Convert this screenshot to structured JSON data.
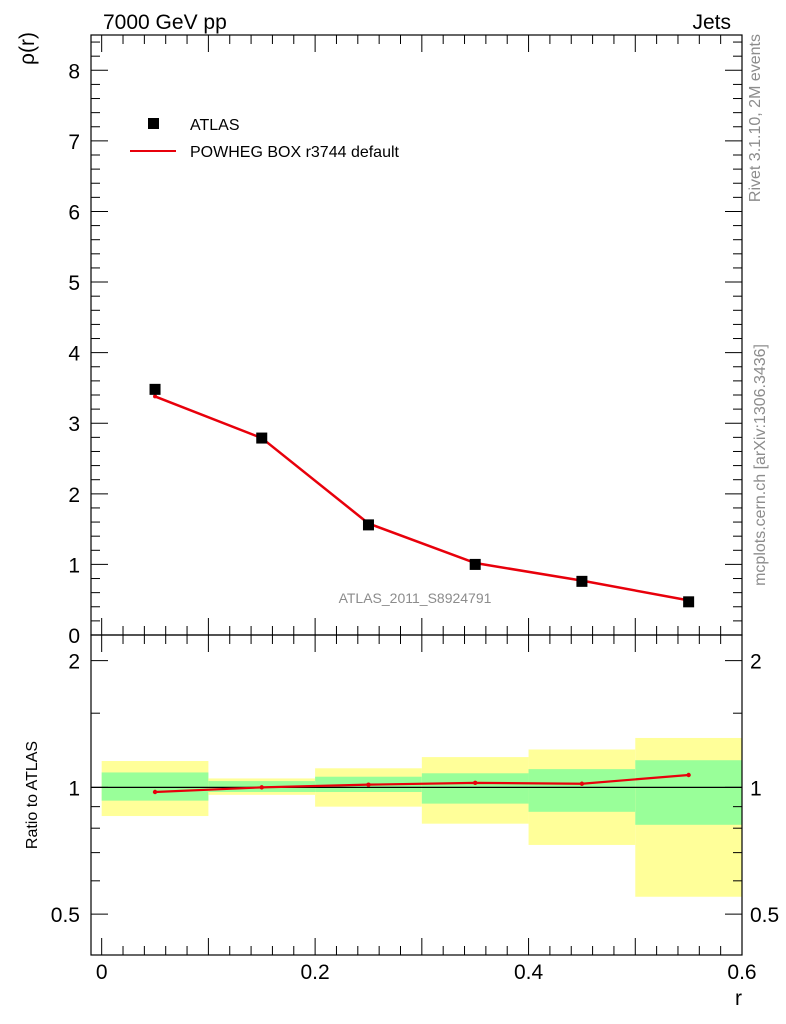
{
  "header": {
    "left": "7000 GeV pp",
    "right": "Jets"
  },
  "side_labels": {
    "rivet": "Rivet 3.1.10,  2M events",
    "mcplots": "mcplots.cern.ch [arXiv:1306.3436]"
  },
  "watermark": "ATLAS_2011_S8924791",
  "colors": {
    "data": "#000000",
    "mc": "#e8000b",
    "band_inner": "#99ff99",
    "band_outer": "#ffff99"
  },
  "chart_data": [
    {
      "type": "scatter",
      "title": "",
      "xlabel": "r",
      "ylabel": "ρ(r)",
      "xlim": [
        -0.01,
        0.6
      ],
      "ylim": [
        0,
        8.5
      ],
      "x_ticks": [
        "0",
        "0.2",
        "0.4",
        "0.6"
      ],
      "y_ticks": [
        "0",
        "1",
        "2",
        "3",
        "4",
        "5",
        "6",
        "7",
        "8"
      ],
      "legend": [
        "ATLAS",
        "POWHEG BOX r3744 default"
      ],
      "legend_position": "top-left",
      "x": [
        0.05,
        0.15,
        0.25,
        0.35,
        0.45,
        0.55
      ],
      "series": [
        {
          "name": "ATLAS",
          "values": [
            3.48,
            2.79,
            1.56,
            1.0,
            0.76,
            0.47
          ]
        },
        {
          "name": "POWHEG BOX r3744 default",
          "values": [
            3.38,
            2.79,
            1.58,
            1.02,
            0.77,
            0.49
          ]
        }
      ]
    },
    {
      "type": "line",
      "title": "",
      "xlabel": "r",
      "ylabel": "Ratio to ATLAS",
      "xlim": [
        -0.01,
        0.6
      ],
      "ylim": [
        0.4,
        2.3
      ],
      "y_scale": "log",
      "x_ticks": [
        "0",
        "0.2",
        "0.4",
        "0.6"
      ],
      "y_ticks": [
        "0.5",
        "1",
        "2"
      ],
      "x": [
        0.05,
        0.15,
        0.25,
        0.35,
        0.45,
        0.55
      ],
      "bins": [
        [
          0.0,
          0.1
        ],
        [
          0.1,
          0.2
        ],
        [
          0.2,
          0.3
        ],
        [
          0.3,
          0.4
        ],
        [
          0.4,
          0.5
        ],
        [
          0.5,
          0.6
        ]
      ],
      "series": [
        {
          "name": "POWHEG BOX r3744 default",
          "values": [
            0.975,
            1.0,
            1.015,
            1.025,
            1.02,
            1.07
          ]
        }
      ],
      "band_inner": {
        "low": [
          0.93,
          0.975,
          0.975,
          0.915,
          0.875,
          0.815
        ],
        "high": [
          1.085,
          1.035,
          1.06,
          1.08,
          1.105,
          1.16
        ]
      },
      "band_outer": {
        "low": [
          0.855,
          0.96,
          0.9,
          0.82,
          0.73,
          0.55
        ],
        "high": [
          1.155,
          1.05,
          1.11,
          1.18,
          1.23,
          1.31
        ]
      }
    }
  ]
}
